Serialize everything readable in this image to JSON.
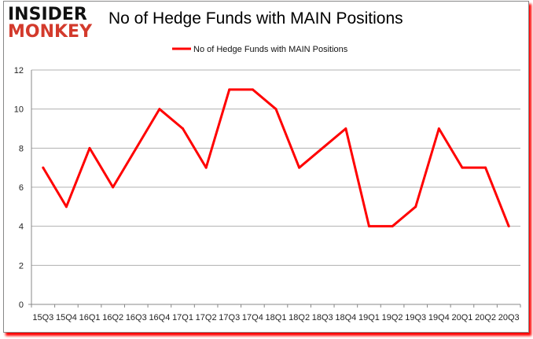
{
  "logo": {
    "line1": "INSIDER",
    "line2": "MONKEY"
  },
  "colors": {
    "series": "#ff0000",
    "grid": "#b0b0b0",
    "logo_red": "#d33a2c"
  },
  "chart_data": {
    "type": "line",
    "title": "No of Hedge Funds with MAIN Positions",
    "categories": [
      "15Q3",
      "15Q4",
      "16Q1",
      "16Q2",
      "16Q3",
      "16Q4",
      "17Q1",
      "17Q2",
      "17Q3",
      "17Q4",
      "18Q1",
      "18Q2",
      "18Q3",
      "18Q4",
      "19Q1",
      "19Q2",
      "19Q3",
      "19Q4",
      "20Q1",
      "20Q2",
      "20Q3"
    ],
    "series": [
      {
        "name": "No of Hedge Funds with MAIN Positions",
        "values": [
          7,
          5,
          8,
          6,
          8,
          10,
          9,
          7,
          11,
          11,
          10,
          7,
          8,
          9,
          4,
          4,
          5,
          9,
          7,
          7,
          4
        ]
      }
    ],
    "ylim": [
      0,
      12
    ],
    "yticks": [
      0,
      2,
      4,
      6,
      8,
      10,
      12
    ],
    "grid": true,
    "legend": "top-center",
    "xlabel": "",
    "ylabel": ""
  }
}
